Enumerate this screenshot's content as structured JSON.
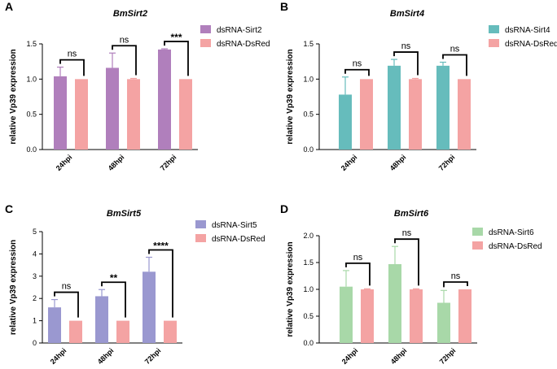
{
  "chart_data": [
    {
      "type": "bar",
      "panel": "A",
      "title": "BmSirt2",
      "ylabel": "relative Vp39 expression",
      "xlabel": "",
      "categories": [
        "24hpi",
        "48hpi",
        "72hpi"
      ],
      "ylim": [
        0,
        1.5
      ],
      "yticks": [
        "0.0",
        "0.5",
        "1.0",
        "1.5"
      ],
      "series": [
        {
          "name": "dsRNA-Sirt2",
          "values": [
            1.04,
            1.16,
            1.42
          ],
          "errors": [
            0.13,
            0.21,
            0.01
          ],
          "color": "#b07fbc"
        },
        {
          "name": "dsRNA-DsRed",
          "values": [
            1.0,
            1.0,
            1.0
          ],
          "errors": [
            0,
            0.01,
            0
          ],
          "color": "#f4a3a3"
        }
      ],
      "significance": [
        "ns",
        "ns",
        "***"
      ],
      "legend_position": "top-right"
    },
    {
      "type": "bar",
      "panel": "B",
      "title": "BmSirt4",
      "ylabel": "relative Vp39 expression",
      "xlabel": "",
      "categories": [
        "24hpi",
        "48hpi",
        "72hpi"
      ],
      "ylim": [
        0,
        1.5
      ],
      "yticks": [
        "0.0",
        "0.5",
        "1.0",
        "1.5"
      ],
      "series": [
        {
          "name": "dsRNA-Sirt4",
          "values": [
            0.78,
            1.19,
            1.19
          ],
          "errors": [
            0.25,
            0.09,
            0.05
          ],
          "color": "#66bcbc"
        },
        {
          "name": "dsRNA-DsRed",
          "values": [
            1.0,
            1.0,
            1.0
          ],
          "errors": [
            0,
            0.01,
            0
          ],
          "color": "#f4a3a3"
        }
      ],
      "significance": [
        "ns",
        "ns",
        "ns"
      ],
      "legend_position": "top-right"
    },
    {
      "type": "bar",
      "panel": "C",
      "title": "BmSirt5",
      "ylabel": "relative Vp39 expression",
      "xlabel": "",
      "categories": [
        "24hpi",
        "48hpi",
        "72hpi"
      ],
      "ylim": [
        0,
        5
      ],
      "yticks": [
        "0",
        "1",
        "2",
        "3",
        "4",
        "5"
      ],
      "series": [
        {
          "name": "dsRNA-Sirt5",
          "values": [
            1.6,
            2.1,
            3.2
          ],
          "errors": [
            0.35,
            0.3,
            0.65
          ],
          "color": "#9a98d0"
        },
        {
          "name": "dsRNA-DsRed",
          "values": [
            1.0,
            1.0,
            1.0
          ],
          "errors": [
            0,
            0,
            0
          ],
          "color": "#f4a3a3"
        }
      ],
      "significance": [
        "ns",
        "**",
        "****"
      ],
      "legend_position": "top-right"
    },
    {
      "type": "bar",
      "panel": "D",
      "title": "BmSirt6",
      "ylabel": "relative Vp39 expression",
      "xlabel": "",
      "categories": [
        "24hpi",
        "48hpi",
        "72hpi"
      ],
      "ylim": [
        0,
        2.0
      ],
      "yticks": [
        "0.0",
        "0.5",
        "1.0",
        "1.5",
        "2.0"
      ],
      "series": [
        {
          "name": "dsRNA-Sirt6",
          "values": [
            1.05,
            1.47,
            0.75
          ],
          "errors": [
            0.3,
            0.33,
            0.23
          ],
          "color": "#a8d8a8"
        },
        {
          "name": "dsRNA-DsRed",
          "values": [
            1.0,
            1.0,
            1.0
          ],
          "errors": [
            0.01,
            0.01,
            0
          ],
          "color": "#f4a3a3"
        }
      ],
      "significance": [
        "ns",
        "ns",
        "ns"
      ],
      "legend_position": "top-right"
    }
  ]
}
